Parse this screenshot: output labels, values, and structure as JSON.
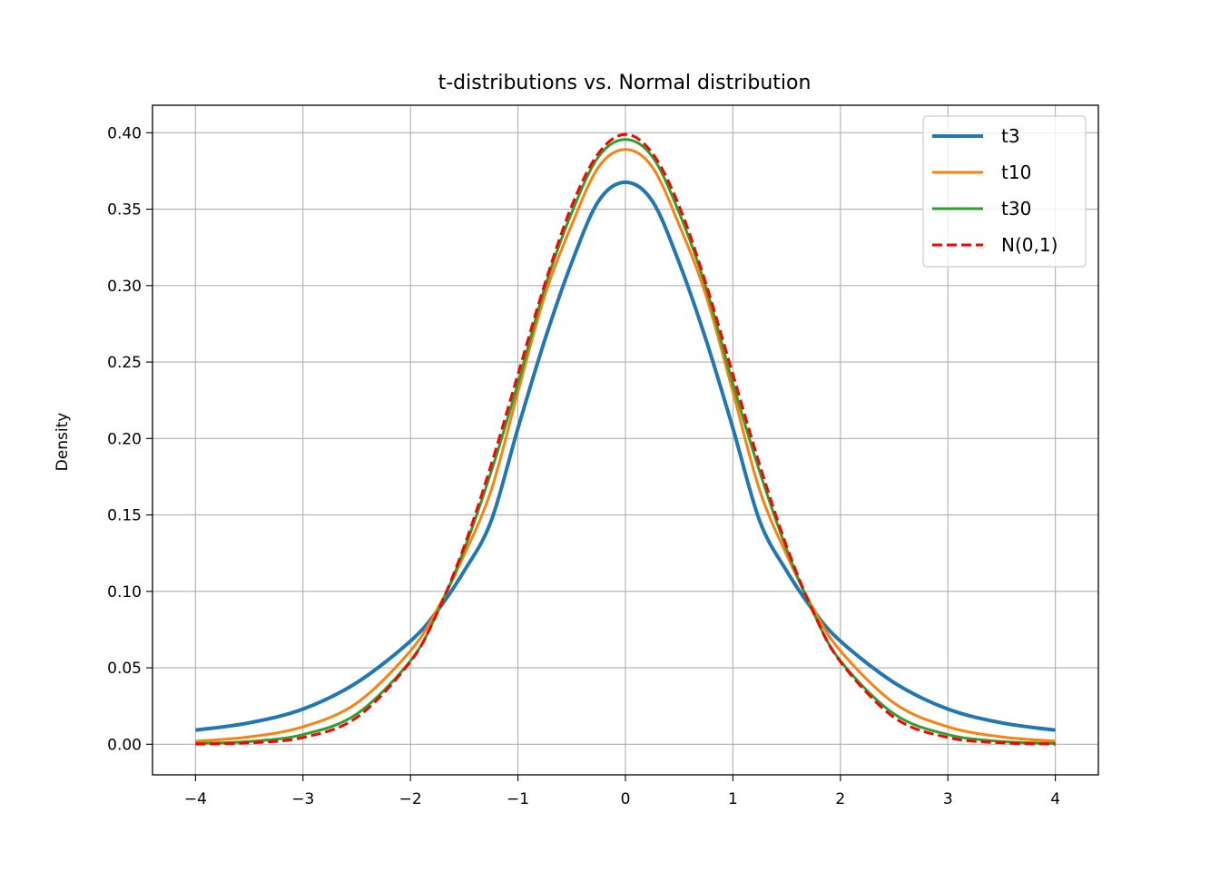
{
  "chart_data": {
    "type": "line",
    "title": "t-distributions vs. Normal distribution",
    "xlabel": "",
    "ylabel": "Density",
    "xlim": [
      -4.4,
      4.4
    ],
    "ylim": [
      -0.02,
      0.418
    ],
    "xticks": [
      -4,
      -3,
      -2,
      -1,
      0,
      1,
      2,
      3,
      4
    ],
    "xtick_labels": [
      "−4",
      "−3",
      "−2",
      "−1",
      "0",
      "1",
      "2",
      "3",
      "4"
    ],
    "yticks": [
      0.0,
      0.05,
      0.1,
      0.15,
      0.2,
      0.25,
      0.3,
      0.35,
      0.4
    ],
    "ytick_labels": [
      "0.00",
      "0.05",
      "0.10",
      "0.15",
      "0.20",
      "0.25",
      "0.30",
      "0.35",
      "0.40"
    ],
    "grid": true,
    "legend_position": "top-right",
    "x": [
      -4.0,
      -3.5,
      -3.0,
      -2.5,
      -2.0,
      -1.75,
      -1.5,
      -1.25,
      -1.0,
      -0.75,
      -0.5,
      -0.25,
      0.0,
      0.25,
      0.5,
      0.75,
      1.0,
      1.25,
      1.5,
      1.75,
      2.0,
      2.5,
      3.0,
      3.5,
      4.0
    ],
    "series": [
      {
        "name": "t3",
        "color": "#1f77b4",
        "dashed": false,
        "width": "thick",
        "values": [
          0.0092,
          0.014,
          0.023,
          0.0403,
          0.0675,
          0.0873,
          0.1134,
          0.1459,
          0.2067,
          0.2645,
          0.315,
          0.3553,
          0.3676,
          0.3553,
          0.315,
          0.2645,
          0.2067,
          0.1459,
          0.1134,
          0.0873,
          0.0675,
          0.0403,
          0.023,
          0.014,
          0.0092
        ]
      },
      {
        "name": "t10",
        "color": "#ff7f0e",
        "dashed": false,
        "width": "normal",
        "values": [
          0.002,
          0.0048,
          0.0114,
          0.0269,
          0.0611,
          0.0884,
          0.1239,
          0.1659,
          0.2304,
          0.2935,
          0.3397,
          0.3776,
          0.3891,
          0.3776,
          0.3397,
          0.2935,
          0.2304,
          0.1659,
          0.1239,
          0.0884,
          0.0611,
          0.0269,
          0.0114,
          0.0048,
          0.002
        ]
      },
      {
        "name": "t30",
        "color": "#2ca02c",
        "dashed": false,
        "width": "normal",
        "values": [
          0.0005,
          0.0018,
          0.0063,
          0.0198,
          0.0546,
          0.086,
          0.1275,
          0.1781,
          0.236,
          0.2987,
          0.3477,
          0.3844,
          0.3956,
          0.3844,
          0.3477,
          0.2987,
          0.236,
          0.1781,
          0.1275,
          0.086,
          0.0546,
          0.0198,
          0.0063,
          0.0018,
          0.0005
        ]
      },
      {
        "name": "N(0,1)",
        "color": "#ff0000",
        "dashed": true,
        "width": "normal",
        "values": [
          0.0001,
          0.0009,
          0.0044,
          0.0175,
          0.054,
          0.0863,
          0.1295,
          0.1826,
          0.242,
          0.3011,
          0.3521,
          0.3867,
          0.3989,
          0.3867,
          0.3521,
          0.3011,
          0.242,
          0.1826,
          0.1295,
          0.0863,
          0.054,
          0.0175,
          0.0044,
          0.0009,
          0.0001
        ]
      }
    ]
  }
}
